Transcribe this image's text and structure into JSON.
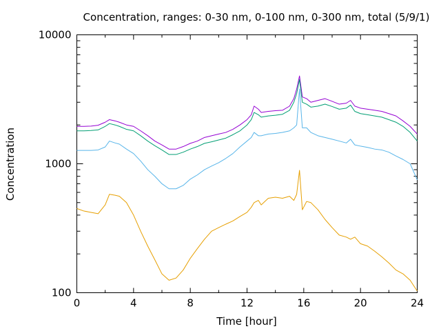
{
  "chart_data": {
    "type": "line",
    "title": "Concentration, ranges: 0-30 nm, 0-100 nm, 0-300 nm, total (5/9/1)",
    "xlabel": "Time [hour]",
    "ylabel": "Concentration",
    "xlim": [
      0,
      24
    ],
    "ylim": [
      100,
      10000
    ],
    "yscale": "log",
    "xticks": [
      "0",
      "4",
      "8",
      "12",
      "16",
      "20",
      "24"
    ],
    "yticks": [
      "100",
      "1000",
      "10000"
    ],
    "grid": false,
    "legend": "none",
    "series": [
      {
        "color": "#9400d3",
        "x": [
          0,
          0.5,
          1,
          1.5,
          2,
          2.3,
          2.7,
          3,
          3.5,
          4,
          4.5,
          5,
          5.5,
          6,
          6.5,
          7,
          7.5,
          8,
          8.5,
          9,
          9.5,
          10,
          10.5,
          11,
          11.5,
          12,
          12.3,
          12.5,
          12.8,
          13,
          13.5,
          14,
          14.5,
          15,
          15.3,
          15.5,
          15.7,
          15.9,
          16.2,
          16.5,
          17,
          17.5,
          18,
          18.5,
          19,
          19.3,
          19.6,
          20,
          20.5,
          21,
          21.5,
          22,
          22.5,
          23,
          23.5,
          24
        ],
        "values": [
          1950,
          1950,
          1960,
          1990,
          2100,
          2200,
          2150,
          2100,
          2000,
          1950,
          1800,
          1650,
          1500,
          1400,
          1300,
          1300,
          1360,
          1440,
          1500,
          1600,
          1650,
          1700,
          1750,
          1850,
          2000,
          2200,
          2400,
          2800,
          2650,
          2500,
          2550,
          2580,
          2600,
          2800,
          3200,
          3800,
          4800,
          3300,
          3200,
          3000,
          3100,
          3200,
          3050,
          2900,
          2950,
          3100,
          2800,
          2700,
          2650,
          2600,
          2550,
          2450,
          2350,
          2150,
          1950,
          1700
        ]
      },
      {
        "color": "#009e73",
        "x": [
          0,
          0.5,
          1,
          1.5,
          2,
          2.3,
          2.7,
          3,
          3.5,
          4,
          4.5,
          5,
          5.5,
          6,
          6.5,
          7,
          7.5,
          8,
          8.5,
          9,
          9.5,
          10,
          10.5,
          11,
          11.5,
          12,
          12.3,
          12.5,
          12.8,
          13,
          13.5,
          14,
          14.5,
          15,
          15.3,
          15.5,
          15.7,
          15.9,
          16.2,
          16.5,
          17,
          17.5,
          18,
          18.5,
          19,
          19.3,
          19.6,
          20,
          20.5,
          21,
          21.5,
          22,
          22.5,
          23,
          23.5,
          24
        ],
        "values": [
          1800,
          1800,
          1810,
          1830,
          1950,
          2050,
          2000,
          1950,
          1850,
          1800,
          1650,
          1500,
          1380,
          1280,
          1180,
          1180,
          1230,
          1300,
          1360,
          1440,
          1480,
          1530,
          1580,
          1680,
          1800,
          2000,
          2200,
          2500,
          2400,
          2300,
          2350,
          2380,
          2420,
          2600,
          3000,
          3500,
          4500,
          3000,
          2900,
          2750,
          2800,
          2900,
          2780,
          2650,
          2700,
          2850,
          2550,
          2450,
          2400,
          2350,
          2300,
          2200,
          2100,
          1950,
          1750,
          1500
        ]
      },
      {
        "color": "#56b4e9",
        "x": [
          0,
          0.5,
          1,
          1.5,
          2,
          2.3,
          2.7,
          3,
          3.5,
          4,
          4.5,
          5,
          5.5,
          6,
          6.5,
          7,
          7.5,
          8,
          8.5,
          9,
          9.5,
          10,
          10.5,
          11,
          11.5,
          12,
          12.3,
          12.5,
          12.8,
          13,
          13.5,
          14,
          14.5,
          15,
          15.3,
          15.5,
          15.7,
          15.9,
          16.2,
          16.5,
          17,
          17.5,
          18,
          18.5,
          19,
          19.3,
          19.6,
          20,
          20.5,
          21,
          21.5,
          22,
          22.5,
          23,
          23.5,
          24
        ],
        "values": [
          1270,
          1270,
          1270,
          1280,
          1350,
          1500,
          1450,
          1420,
          1300,
          1200,
          1050,
          900,
          800,
          700,
          640,
          640,
          680,
          760,
          820,
          900,
          960,
          1020,
          1100,
          1200,
          1350,
          1500,
          1600,
          1750,
          1650,
          1650,
          1700,
          1720,
          1750,
          1800,
          1900,
          2000,
          3800,
          1900,
          1900,
          1750,
          1650,
          1600,
          1550,
          1500,
          1450,
          1550,
          1400,
          1370,
          1340,
          1300,
          1280,
          1230,
          1150,
          1080,
          1000,
          750
        ]
      },
      {
        "color": "#e69f00",
        "x": [
          0,
          0.5,
          1,
          1.5,
          2,
          2.3,
          2.7,
          3,
          3.5,
          4,
          4.5,
          5,
          5.5,
          6,
          6.5,
          7,
          7.5,
          8,
          8.5,
          9,
          9.5,
          10,
          10.5,
          11,
          11.5,
          12,
          12.3,
          12.5,
          12.8,
          13,
          13.5,
          14,
          14.5,
          15,
          15.3,
          15.5,
          15.7,
          15.9,
          16.2,
          16.5,
          17,
          17.5,
          18,
          18.5,
          19,
          19.3,
          19.6,
          20,
          20.5,
          21,
          21.5,
          22,
          22.5,
          23,
          23.5,
          24
        ],
        "values": [
          450,
          430,
          420,
          410,
          480,
          580,
          570,
          560,
          500,
          400,
          300,
          230,
          180,
          140,
          125,
          130,
          150,
          185,
          220,
          260,
          300,
          320,
          340,
          360,
          390,
          420,
          460,
          500,
          520,
          480,
          540,
          550,
          540,
          560,
          520,
          580,
          890,
          440,
          510,
          500,
          440,
          370,
          320,
          280,
          270,
          260,
          270,
          240,
          230,
          210,
          190,
          170,
          150,
          140,
          125,
          103
        ]
      }
    ]
  }
}
